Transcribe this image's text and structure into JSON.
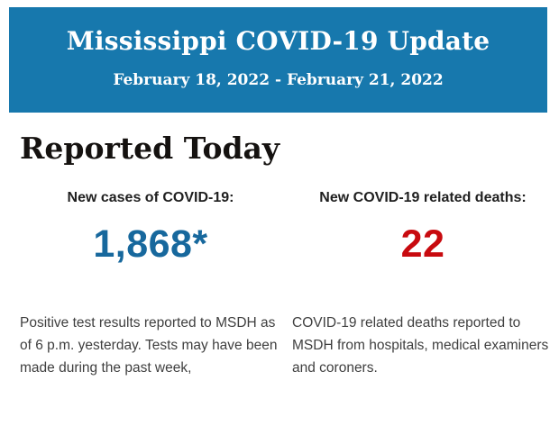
{
  "header": {
    "title": "Mississippi COVID-19 Update",
    "date_range": "February 18, 2022 - February 21, 2022",
    "background_color": "#1778AD",
    "text_color": "#FFFFFF"
  },
  "main": {
    "heading": "Reported Today",
    "stats": [
      {
        "label": "New cases of COVID-19:",
        "value": "1,868*",
        "value_color": "#17689D",
        "description": "Positive test results reported to MSDH as of 6 p.m. yesterday. Tests may have been made during the past week,"
      },
      {
        "label": "New COVID-19 related deaths:",
        "value": "22",
        "value_color": "#C80A0F",
        "description": "COVID-19 related deaths reported to MSDH from hospitals, medical examiners and coroners."
      }
    ]
  }
}
